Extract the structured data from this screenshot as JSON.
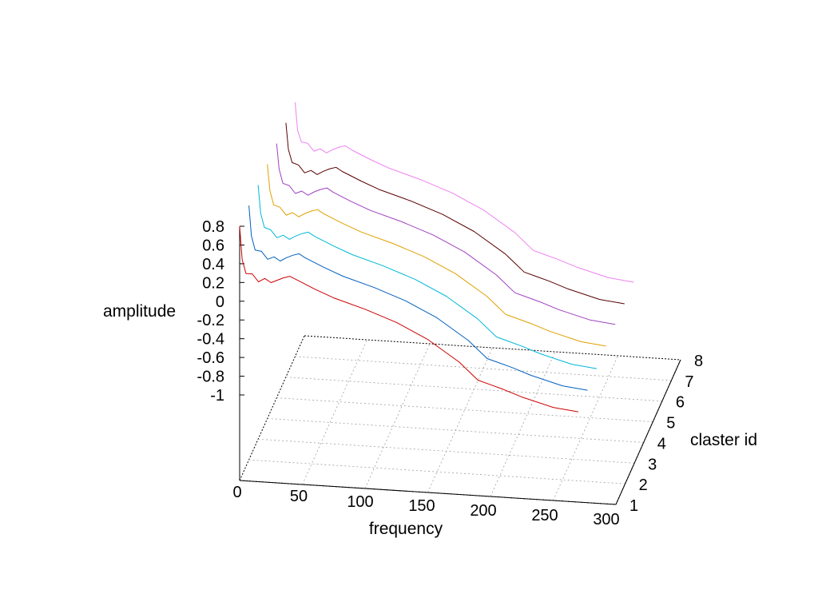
{
  "chart_data": {
    "type": "line",
    "view": "3d-waterfall",
    "xlabel": "frequency",
    "ylabel": "claster id",
    "zlabel": "amplitude",
    "xlim": [
      0,
      300
    ],
    "ylim": [
      1,
      8
    ],
    "zlim": [
      -1,
      0.8
    ],
    "x_ticks": [
      "0",
      "50",
      "100",
      "150",
      "200",
      "250",
      "300"
    ],
    "y_ticks": [
      "1",
      "2",
      "3",
      "4",
      "5",
      "6",
      "7",
      "8"
    ],
    "z_ticks": [
      "0.8",
      "0.6",
      "0.4",
      "0.2",
      "0",
      "-0.2",
      "-0.4",
      "-0.6",
      "-0.8",
      "-1"
    ],
    "grid": true,
    "x": [
      0,
      2,
      5,
      10,
      15,
      20,
      25,
      30,
      35,
      40,
      45,
      50,
      60,
      75,
      100,
      125,
      150,
      175,
      190,
      200,
      210,
      225,
      250,
      270
    ],
    "series": [
      {
        "cluster": 1,
        "color": "#cc0000",
        "values": [
          0.8,
          0.45,
          0.3,
          0.3,
          0.22,
          0.26,
          0.22,
          0.25,
          0.28,
          0.3,
          0.27,
          0.24,
          0.18,
          0.1,
          0.0,
          -0.12,
          -0.28,
          -0.5,
          -0.68,
          -0.72,
          -0.76,
          -0.83,
          -0.92,
          -0.95
        ]
      },
      {
        "cluster": 2,
        "color": "#0060c0",
        "values": [
          0.8,
          0.48,
          0.33,
          0.32,
          0.24,
          0.27,
          0.23,
          0.27,
          0.3,
          0.32,
          0.28,
          0.25,
          0.19,
          0.11,
          0.01,
          -0.11,
          -0.27,
          -0.49,
          -0.67,
          -0.71,
          -0.75,
          -0.82,
          -0.91,
          -0.94
        ]
      },
      {
        "cluster": 3,
        "color": "#00b8d8",
        "values": [
          0.8,
          0.5,
          0.35,
          0.33,
          0.25,
          0.28,
          0.24,
          0.28,
          0.31,
          0.33,
          0.29,
          0.26,
          0.2,
          0.12,
          0.02,
          -0.1,
          -0.26,
          -0.48,
          -0.66,
          -0.7,
          -0.74,
          -0.81,
          -0.9,
          -0.93
        ]
      },
      {
        "cluster": 4,
        "color": "#e0a000",
        "values": [
          0.8,
          0.52,
          0.37,
          0.35,
          0.27,
          0.3,
          0.26,
          0.3,
          0.33,
          0.35,
          0.31,
          0.28,
          0.22,
          0.14,
          0.04,
          -0.08,
          -0.24,
          -0.46,
          -0.64,
          -0.68,
          -0.72,
          -0.79,
          -0.88,
          -0.91
        ]
      },
      {
        "cluster": 5,
        "color": "#a040c0",
        "values": [
          0.8,
          0.53,
          0.38,
          0.36,
          0.28,
          0.31,
          0.27,
          0.31,
          0.34,
          0.36,
          0.32,
          0.29,
          0.23,
          0.15,
          0.05,
          -0.07,
          -0.23,
          -0.45,
          -0.63,
          -0.67,
          -0.71,
          -0.78,
          -0.87,
          -0.9
        ]
      },
      {
        "cluster": 6,
        "color": "#5a0000",
        "values": [
          0.8,
          0.52,
          0.38,
          0.36,
          0.28,
          0.31,
          0.27,
          0.31,
          0.34,
          0.36,
          0.32,
          0.29,
          0.23,
          0.15,
          0.05,
          -0.07,
          -0.23,
          -0.45,
          -0.63,
          -0.67,
          -0.71,
          -0.78,
          -0.87,
          -0.9
        ]
      },
      {
        "cluster": 7,
        "color": "#ee82ee",
        "values": [
          0.8,
          0.5,
          0.38,
          0.37,
          0.29,
          0.32,
          0.28,
          0.32,
          0.35,
          0.37,
          0.33,
          0.3,
          0.24,
          0.16,
          0.06,
          -0.06,
          -0.22,
          -0.44,
          -0.62,
          -0.66,
          -0.7,
          -0.77,
          -0.86,
          -0.89
        ]
      }
    ]
  }
}
